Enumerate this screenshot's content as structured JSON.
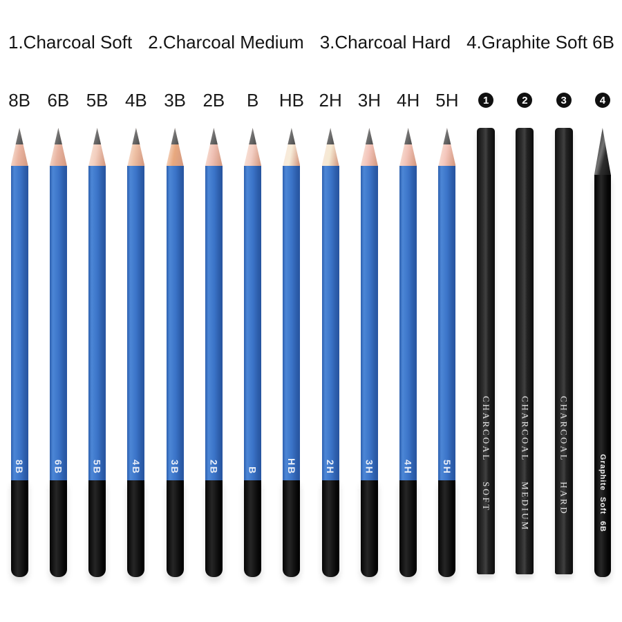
{
  "background": "#ffffff",
  "legend": {
    "items": [
      "1.Charcoal Soft",
      "2.Charcoal Medium",
      "3.Charcoal Hard",
      "4.Graphite Soft 6B"
    ]
  },
  "colors": {
    "blue_body": "#3b74c8",
    "blue_light": "#4c86d6",
    "blue_dark": "#27549f",
    "black_dip": "#0c0c0c",
    "charcoal_body": "#2a2a2a",
    "lead_gray": "#6d6d6d",
    "print_white": "#e9eef7",
    "label_text": "#1a1a1a",
    "badge_bg": "#101010",
    "badge_text": "#ffffff"
  },
  "pencils": [
    {
      "kind": "blue",
      "grade": "8B",
      "body_label": "8B",
      "wood": "#eab5a2"
    },
    {
      "kind": "blue",
      "grade": "6B",
      "body_label": "6B",
      "wood": "#e8b3a0"
    },
    {
      "kind": "blue",
      "grade": "5B",
      "body_label": "5B",
      "wood": "#f2cdbd"
    },
    {
      "kind": "blue",
      "grade": "4B",
      "body_label": "4B",
      "wood": "#eec0a4"
    },
    {
      "kind": "blue",
      "grade": "3B",
      "body_label": "3B",
      "wood": "#e8a87e"
    },
    {
      "kind": "blue",
      "grade": "2B",
      "body_label": "2B",
      "wood": "#efc0b4"
    },
    {
      "kind": "blue",
      "grade": "B",
      "body_label": "B",
      "wood": "#f3cfc4"
    },
    {
      "kind": "blue",
      "grade": "HB",
      "body_label": "HB",
      "wood": "#f7ecd9"
    },
    {
      "kind": "blue",
      "grade": "2H",
      "body_label": "2H",
      "wood": "#f5e9d2"
    },
    {
      "kind": "blue",
      "grade": "3H",
      "body_label": "3H",
      "wood": "#f3c4ba"
    },
    {
      "kind": "blue",
      "grade": "4H",
      "body_label": "4H",
      "wood": "#f2c3b8"
    },
    {
      "kind": "blue",
      "grade": "5H",
      "body_label": "5H",
      "wood": "#f4c6bc"
    },
    {
      "kind": "charcoal",
      "number": "1",
      "label_parts": [
        "CHARCOAL",
        "SOFT"
      ]
    },
    {
      "kind": "charcoal",
      "number": "2",
      "label_parts": [
        "CHARCOAL",
        "MEDIUM"
      ]
    },
    {
      "kind": "charcoal",
      "number": "3",
      "label_parts": [
        "CHARCOAL",
        "HARD"
      ]
    },
    {
      "kind": "graphite",
      "number": "4",
      "label_parts": [
        "Graphite",
        "Soft",
        "6B"
      ]
    }
  ]
}
